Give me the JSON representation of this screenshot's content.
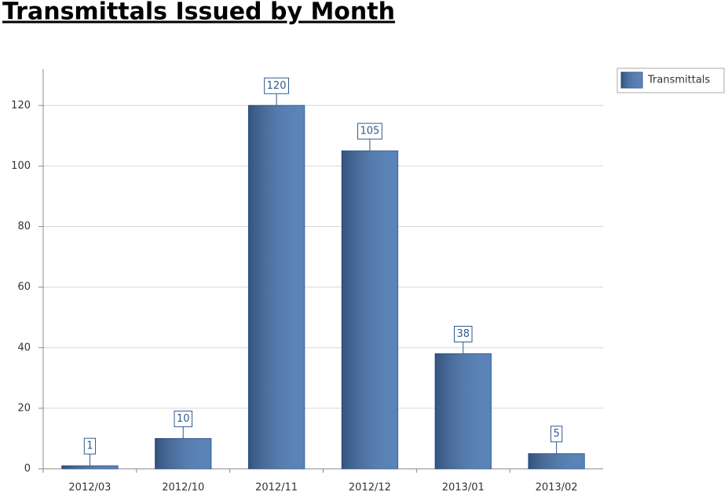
{
  "chart_data": {
    "type": "bar",
    "title": "Transmittals Issued by Month",
    "categories": [
      "2012/03",
      "2012/10",
      "2012/11",
      "2012/12",
      "2013/01",
      "2013/02"
    ],
    "series": [
      {
        "name": "Transmittals",
        "color": "#4a78b4",
        "values": [
          1,
          10,
          120,
          105,
          38,
          5
        ]
      }
    ],
    "ylim": [
      0,
      132
    ],
    "yticks": [
      0,
      20,
      40,
      60,
      80,
      100,
      120
    ],
    "grid": true,
    "legend": "right"
  }
}
